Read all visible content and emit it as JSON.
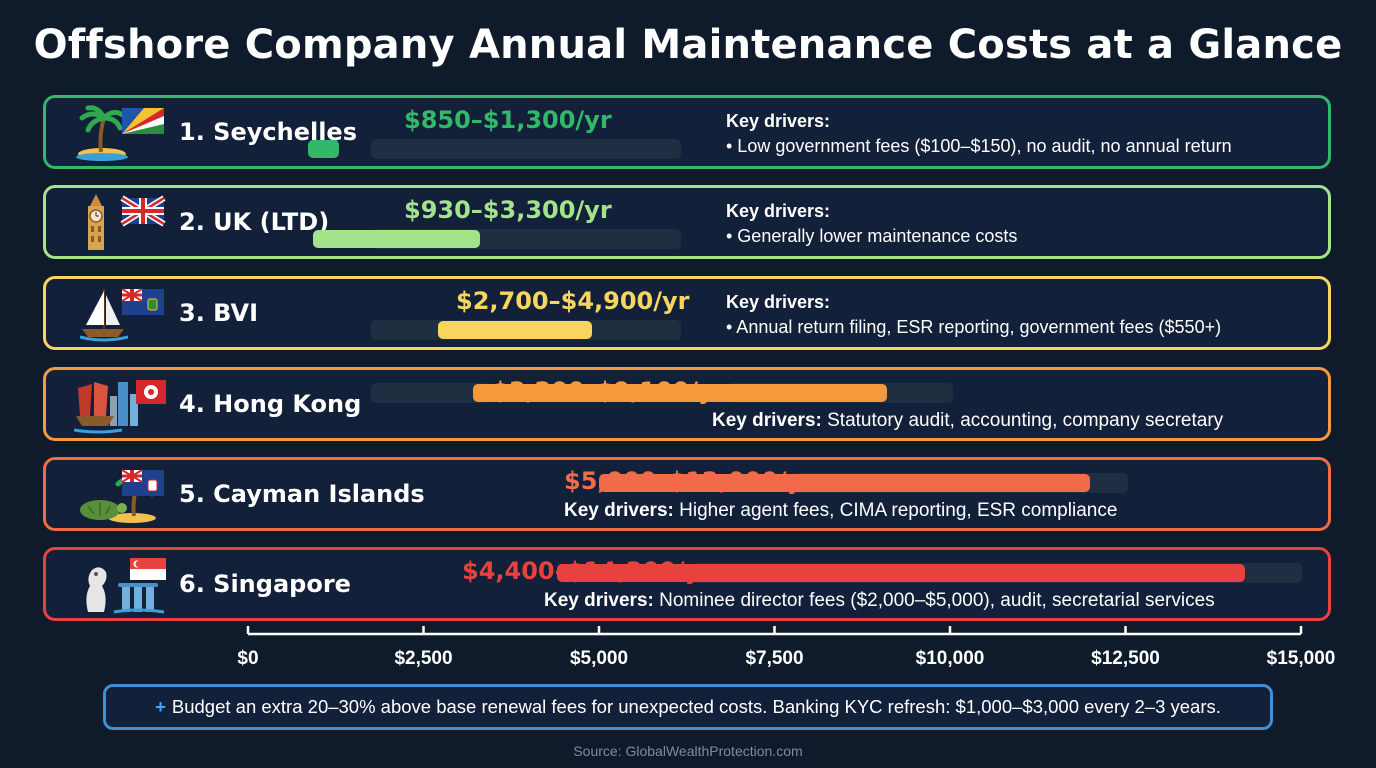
{
  "chart_data": {
    "type": "bar",
    "orientation": "horizontal-range",
    "title": "Offshore Company Annual Maintenance Costs at a Glance",
    "xlim": [
      0,
      15000
    ],
    "x_ticks": [
      0,
      2500,
      5000,
      7500,
      10000,
      12500,
      15000
    ],
    "x_tick_labels": [
      "$0",
      "$2,500",
      "$5,000",
      "$7,500",
      "$10,000",
      "$12,500",
      "$15,000"
    ],
    "categories": [
      "1. Seychelles",
      "2. UK (LTD)",
      "3. BVI",
      "4. Hong Kong",
      "5. Cayman Islands",
      "6. Singapore"
    ],
    "series": [
      {
        "low": 850,
        "high": 1300
      },
      {
        "low": 930,
        "high": 3300
      },
      {
        "low": 2700,
        "high": 4900
      },
      {
        "low": 3200,
        "high": 9100
      },
      {
        "low": 5000,
        "high": 12000
      },
      {
        "low": 4400,
        "high": 14200
      }
    ],
    "rows": [
      {
        "name": "1. Seychelles",
        "cost_label": "$850–$1,300/yr",
        "drivers_label": "Key drivers:",
        "drivers_text": "• Low government fees ($100–$150), no audit, no annual return",
        "color": "#33b86a",
        "icon": "island-palm-icon",
        "flag": "seychelles-flag-icon"
      },
      {
        "name": "2. UK (LTD)",
        "cost_label": "$930–$3,300/yr",
        "drivers_label": "Key drivers:",
        "drivers_text": "• Generally lower maintenance costs",
        "color": "#a3e38a",
        "icon": "big-ben-icon",
        "flag": "uk-flag-icon"
      },
      {
        "name": "3. BVI",
        "cost_label": "$2,700–$4,900/yr",
        "drivers_label": "Key drivers:",
        "drivers_text": "• Annual return filing, ESR reporting, government fees ($550+)",
        "color": "#f7d660",
        "icon": "sailboat-icon",
        "flag": "bvi-flag-icon"
      },
      {
        "name": "4. Hong Kong",
        "cost_label": "$3,200–$9,100/yr",
        "drivers_label": "Key drivers:",
        "drivers_text": "Statutory audit, accounting, company secretary",
        "color": "#f59a3c",
        "icon": "hong-kong-junk-skyline-icon",
        "flag": "hong-kong-flag-icon"
      },
      {
        "name": "5. Cayman Islands",
        "cost_label": "$5,000–$12,000/yr",
        "drivers_label": "Key drivers:",
        "drivers_text": "Higher agent fees, CIMA reporting, ESR compliance",
        "color": "#f26a47",
        "icon": "turtle-island-icon",
        "flag": "cayman-flag-icon"
      },
      {
        "name": "6. Singapore",
        "cost_label": "$4,400–$14,200/yr",
        "drivers_label": "Key drivers:",
        "drivers_text": "Nominee director fees ($2,000–$5,000), audit, secretarial services",
        "color": "#e8423f",
        "icon": "merlion-marina-bay-icon",
        "flag": "singapore-flag-icon"
      }
    ]
  },
  "note": {
    "plus": "+",
    "text": "Budget an extra 20–30% above base renewal fees for unexpected costs. Banking KYC refresh: $1,000–$3,000 every 2–3 years."
  },
  "source": "Source: GlobalWealthProtection.com"
}
